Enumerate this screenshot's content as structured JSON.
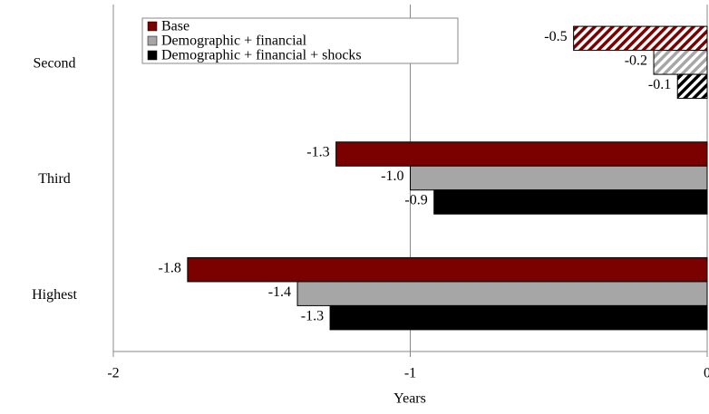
{
  "chart_data": {
    "type": "hbar",
    "xlabel": "Years",
    "categories": [
      "Second",
      "Third",
      "Highest"
    ],
    "hatched": [
      true,
      false,
      false
    ],
    "series": [
      {
        "name": "Base",
        "color": "#7b0000",
        "values": [
          -0.45,
          -1.25,
          -1.75
        ],
        "value_labels": [
          "-0.5",
          "-1.3",
          "-1.8"
        ]
      },
      {
        "name": "Demographic + financial",
        "color": "#a6a6a6",
        "values": [
          -0.18,
          -1.0,
          -1.38
        ],
        "value_labels": [
          "-0.2",
          "-1.0",
          "-1.4"
        ]
      },
      {
        "name": "Demographic + financial + shocks",
        "color": "#000000",
        "values": [
          -0.1,
          -0.92,
          -1.27
        ],
        "value_labels": [
          "-0.1",
          "-0.9",
          "-1.3"
        ]
      }
    ],
    "xlim": [
      -2,
      0
    ],
    "xticks": [
      -2,
      -1,
      0
    ],
    "grid": true,
    "legend": "top-left"
  }
}
